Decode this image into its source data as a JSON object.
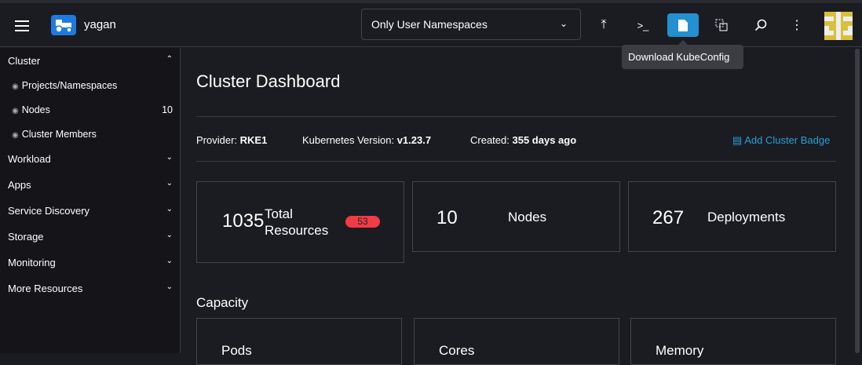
{
  "header": {
    "app_name": "yagan",
    "namespace_filter": "Only User Namespaces",
    "tooltip": "Download KubeConfig",
    "icons": [
      "upload-icon",
      "terminal-icon",
      "file-icon",
      "copy-icon",
      "search-icon",
      "more-icon"
    ]
  },
  "sidebar": {
    "cluster": "Cluster",
    "cluster_items": [
      {
        "label": "Projects/Namespaces"
      },
      {
        "label": "Nodes",
        "count": "10"
      },
      {
        "label": "Cluster Members"
      }
    ],
    "groups": [
      "Workload",
      "Apps",
      "Service Discovery",
      "Storage",
      "Monitoring",
      "More Resources"
    ]
  },
  "main": {
    "title": "Cluster Dashboard",
    "provider_label": "Provider:",
    "provider": "RKE1",
    "version_label": "Kubernetes Version:",
    "version": "v1.23.7",
    "created_label": "Created:",
    "created": "355 days ago",
    "add_badge": "Add Cluster Badge",
    "cards": [
      {
        "value": "1035",
        "label1": "Total",
        "label2": "Resources",
        "badge": "53"
      },
      {
        "value": "10",
        "label": "Nodes"
      },
      {
        "value": "267",
        "label": "Deployments"
      }
    ],
    "capacity_title": "Capacity",
    "capacity": [
      "Pods",
      "Cores",
      "Memory"
    ]
  },
  "colors": {
    "accent": "#2391d1",
    "danger": "#f13b45",
    "logo": "#1f7ae0"
  }
}
